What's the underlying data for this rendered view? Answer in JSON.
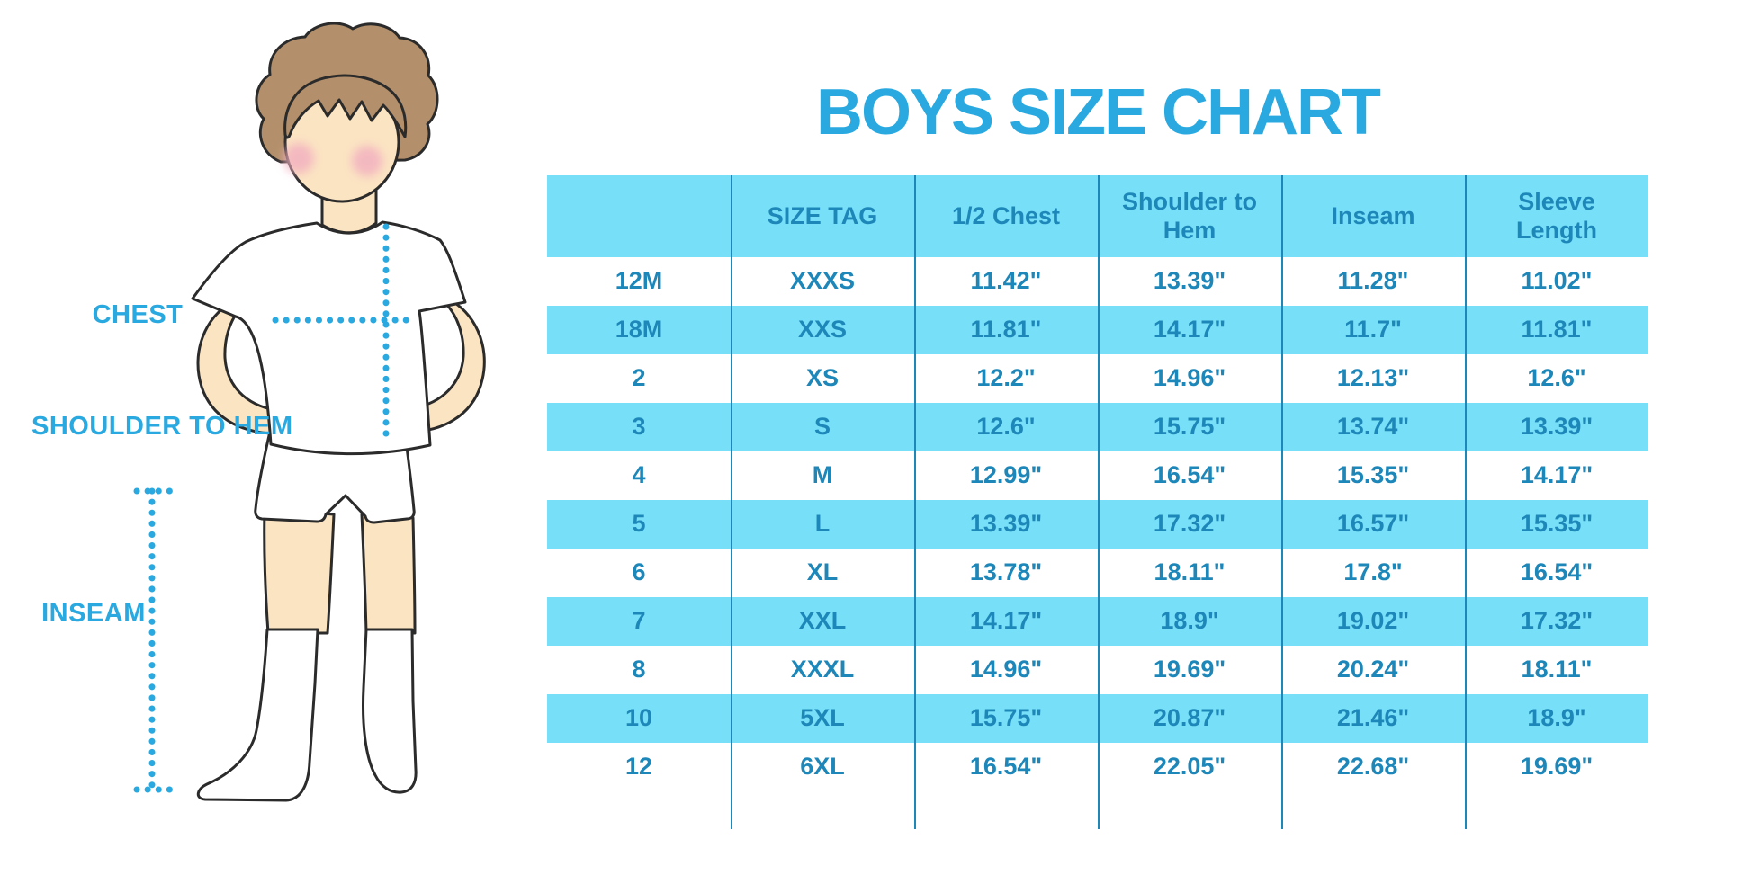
{
  "title": "BOYS SIZE CHART",
  "figure": {
    "labels": {
      "chest": "CHEST",
      "shoulder_to_hem": "SHOULDER TO HEM",
      "inseam": "INSEAM"
    }
  },
  "colors": {
    "accent": "#29A9E0",
    "cell_text": "#1E87B9",
    "row_cyan": "#77DFF7",
    "divider": "#1E87B9",
    "skin": "#FBE4C2",
    "hair": "#B3906B",
    "blush": "#F2AFC0",
    "outline": "#2B2B2B"
  },
  "chart_data": {
    "type": "table",
    "title": "BOYS SIZE CHART",
    "columns": [
      "",
      "SIZE TAG",
      "1/2 Chest",
      "Shoulder to Hem",
      "Inseam",
      "Sleeve Length"
    ],
    "rows": [
      [
        "12M",
        "XXXS",
        "11.42\"",
        "13.39\"",
        "11.28\"",
        "11.02\""
      ],
      [
        "18M",
        "XXS",
        "11.81\"",
        "14.17\"",
        "11.7\"",
        "11.81\""
      ],
      [
        "2",
        "XS",
        "12.2\"",
        "14.96\"",
        "12.13\"",
        "12.6\""
      ],
      [
        "3",
        "S",
        "12.6\"",
        "15.75\"",
        "13.74\"",
        "13.39\""
      ],
      [
        "4",
        "M",
        "12.99\"",
        "16.54\"",
        "15.35\"",
        "14.17\""
      ],
      [
        "5",
        "L",
        "13.39\"",
        "17.32\"",
        "16.57\"",
        "15.35\""
      ],
      [
        "6",
        "XL",
        "13.78\"",
        "18.11\"",
        "17.8\"",
        "16.54\""
      ],
      [
        "7",
        "XXL",
        "14.17\"",
        "18.9\"",
        "19.02\"",
        "17.32\""
      ],
      [
        "8",
        "XXXL",
        "14.96\"",
        "19.69\"",
        "20.24\"",
        "18.11\""
      ],
      [
        "10",
        "5XL",
        "15.75\"",
        "20.87\"",
        "21.46\"",
        "18.9\""
      ],
      [
        "12",
        "6XL",
        "16.54\"",
        "22.05\"",
        "22.68\"",
        "19.69\""
      ]
    ],
    "row_striping": "white / light-cyan alternating, header light-cyan",
    "units": "inches"
  }
}
